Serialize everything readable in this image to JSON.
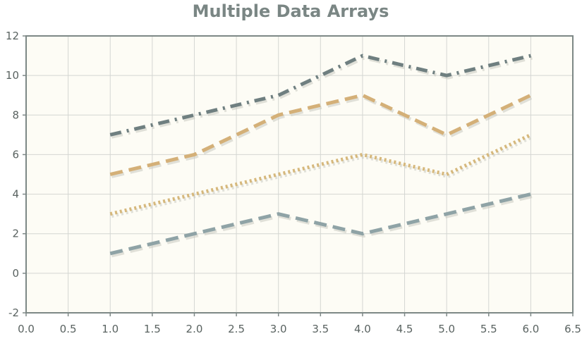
{
  "chart_data": {
    "type": "line",
    "title": "Multiple Data Arrays",
    "xlabel": "",
    "ylabel": "",
    "xlim": [
      0,
      6.5
    ],
    "ylim": [
      -2,
      12
    ],
    "x_ticks": [
      "0.0",
      "0.5",
      "1.0",
      "1.5",
      "2.0",
      "2.5",
      "3.0",
      "3.5",
      "4.0",
      "4.5",
      "5.0",
      "5.5",
      "6.0",
      "6.5"
    ],
    "y_ticks": [
      "-2",
      "0",
      "2",
      "4",
      "6",
      "8",
      "10",
      "12"
    ],
    "grid": true,
    "series": [
      {
        "x": [
          1,
          2,
          3,
          4,
          5,
          6
        ],
        "values": [
          1,
          2,
          3,
          2,
          3,
          4
        ],
        "color": "#8fa3a6",
        "style": "dashed"
      },
      {
        "x": [
          1,
          2,
          3,
          4,
          5,
          6
        ],
        "values": [
          3,
          4,
          5,
          6,
          5,
          7
        ],
        "color": "#d6b87c",
        "style": "dotted"
      },
      {
        "x": [
          1,
          2,
          3,
          4,
          5,
          6
        ],
        "values": [
          5,
          6,
          8,
          9,
          7,
          9
        ],
        "color": "#d4b078",
        "style": "dashed"
      },
      {
        "x": [
          1,
          2,
          3,
          4,
          5,
          6
        ],
        "values": [
          7,
          8,
          9,
          11,
          10,
          11
        ],
        "color": "#6f7f80",
        "style": "dash-dot"
      }
    ]
  }
}
